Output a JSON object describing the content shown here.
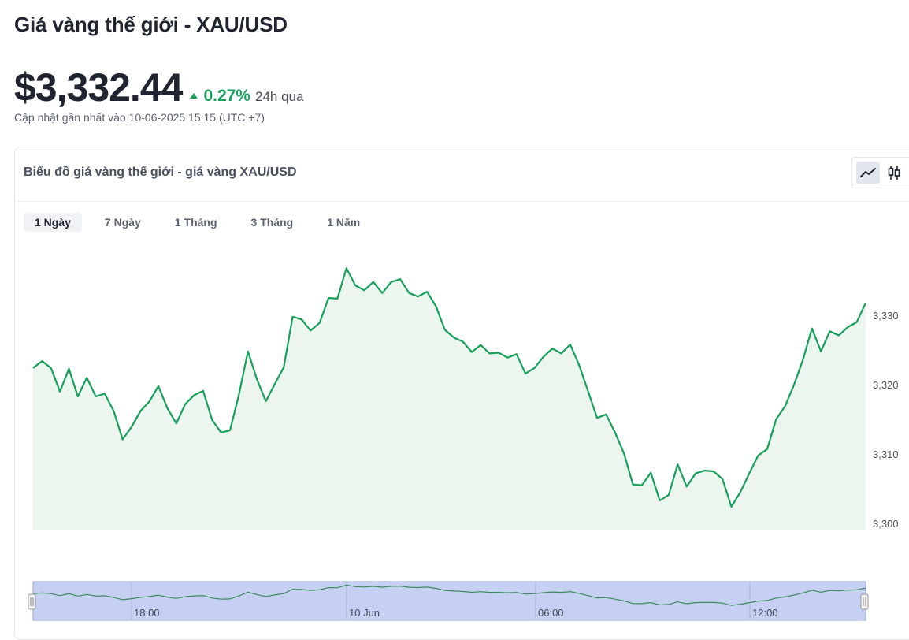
{
  "header": {
    "title": "Giá vàng thế giới - XAU/USD",
    "price": "$3,332.44",
    "change_pct": "0.27%",
    "change_period": "24h qua",
    "updated": "Cập nhật gần nhất vào 10-06-2025 15:15 (UTC +7)"
  },
  "card": {
    "title": "Biểu đồ giá vàng thế giới - giá vàng XAU/USD",
    "chart_types": [
      {
        "label": "line",
        "icon": "line-chart-icon",
        "active": true
      },
      {
        "label": "candle",
        "icon": "candlestick-icon",
        "active": false
      }
    ],
    "ranges": [
      "1 Ngày",
      "7 Ngày",
      "1 Tháng",
      "3 Tháng",
      "1 Năm"
    ],
    "active_range": "1 Ngày"
  },
  "colors": {
    "line": "#16a05a",
    "area": "#ecf6ef",
    "navigator_fill": "#c5d0f3",
    "navigator_border": "#9aa6c8",
    "accent_green": "#16a05a"
  },
  "chart_data": {
    "type": "area",
    "ylim": [
      3300,
      3337
    ],
    "yticks": [
      3300,
      3310,
      3320,
      3330
    ],
    "ytick_labels": [
      "3,300",
      "3,310",
      "3,320",
      "3,330"
    ],
    "navigator_labels": [
      "18:00",
      "10 Jun",
      "06:00",
      "12:00"
    ],
    "values": [
      3322.4,
      3323.4,
      3322.4,
      3319.0,
      3322.3,
      3318.3,
      3321.0,
      3318.3,
      3318.7,
      3316.2,
      3312.1,
      3313.9,
      3316.2,
      3317.6,
      3319.8,
      3316.6,
      3314.4,
      3317.2,
      3318.5,
      3319.1,
      3314.9,
      3313.1,
      3313.4,
      3318.6,
      3324.8,
      3320.8,
      3317.6,
      3320.1,
      3322.5,
      3329.8,
      3329.4,
      3327.8,
      3328.9,
      3332.5,
      3332.4,
      3336.8,
      3334.3,
      3333.6,
      3334.8,
      3333.2,
      3334.8,
      3335.2,
      3333.2,
      3332.7,
      3333.4,
      3331.3,
      3327.9,
      3326.8,
      3326.2,
      3324.7,
      3325.7,
      3324.5,
      3324.6,
      3323.9,
      3324.4,
      3321.6,
      3322.4,
      3324.0,
      3325.2,
      3324.5,
      3325.8,
      3322.8,
      3319.0,
      3315.2,
      3315.7,
      3313.1,
      3310.1,
      3305.6,
      3305.5,
      3307.3,
      3303.3,
      3304.1,
      3308.5,
      3305.3,
      3307.2,
      3307.6,
      3307.5,
      3306.4,
      3302.4,
      3304.5,
      3307.2,
      3309.8,
      3310.7,
      3315.0,
      3316.9,
      3320.0,
      3323.6,
      3328.1,
      3324.8,
      3327.7,
      3327.1,
      3328.3,
      3329.0,
      3331.8
    ]
  }
}
